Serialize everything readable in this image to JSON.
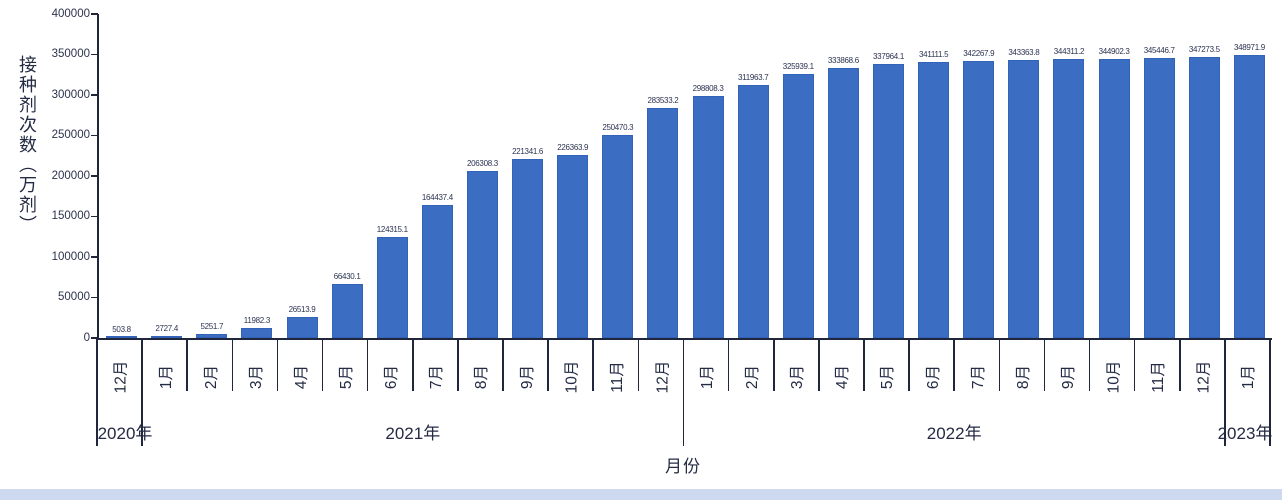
{
  "chart_data": {
    "type": "bar",
    "title": "",
    "ylabel": "接种剂次数（万剂）",
    "xlabel": "月份",
    "ylim": [
      0,
      400000
    ],
    "yticks": [
      0,
      50000,
      100000,
      150000,
      200000,
      250000,
      300000,
      350000,
      400000
    ],
    "grid": false,
    "legend": "none",
    "bar_color": "#3b6dc3",
    "categories": [
      "12月",
      "1月",
      "2月",
      "3月",
      "4月",
      "5月",
      "6月",
      "7月",
      "8月",
      "9月",
      "10月",
      "11月",
      "12月",
      "1月",
      "2月",
      "3月",
      "4月",
      "5月",
      "6月",
      "7月",
      "8月",
      "9月",
      "10月",
      "11月",
      "12月",
      "1月"
    ],
    "values": [
      503.8,
      2727.4,
      5251.7,
      11982.3,
      26513.9,
      66430.1,
      124315.1,
      164437.4,
      206308.3,
      221341.6,
      226363.9,
      250470.3,
      283533.2,
      298808.3,
      311963.7,
      325939.1,
      333868.6,
      337964.1,
      341111.5,
      342267.9,
      343363.8,
      344311.2,
      344902.3,
      345446.7,
      347273.5,
      348971.9
    ],
    "year_groups": [
      {
        "label": "2020年",
        "start": 0,
        "count": 1
      },
      {
        "label": "2021年",
        "start": 1,
        "count": 12
      },
      {
        "label": "2022年",
        "start": 13,
        "count": 12
      },
      {
        "label": "2023年",
        "start": 25,
        "count": 1
      }
    ]
  },
  "accent": {
    "bottom_strip_color": "#ccd9ee"
  }
}
